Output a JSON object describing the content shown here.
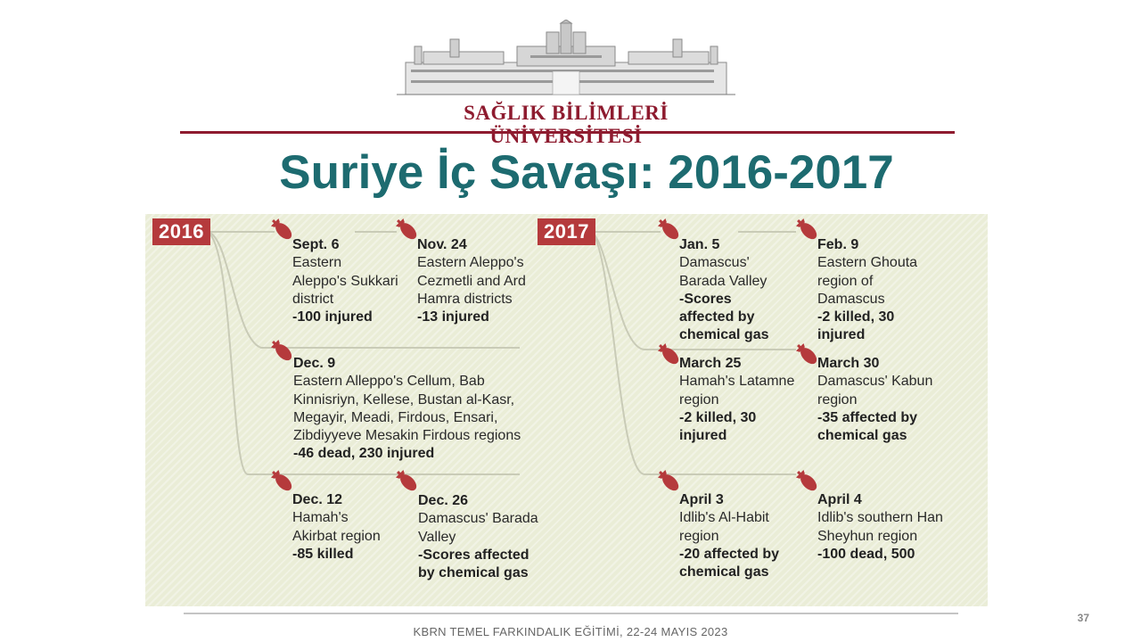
{
  "header": {
    "logo_text": "SAĞLIK BİLİMLERİ ÜNİVERSİTESİ",
    "brand_color": "#8e1b2f"
  },
  "slide": {
    "title": "Suriye İç Savaşı: 2016-2017",
    "title_color": "#1d6b70"
  },
  "timeline": {
    "accent_color": "#b53a3c",
    "years": {
      "y2016": "2016",
      "y2017": "2017"
    },
    "events": [
      {
        "date": "Sept. 6",
        "body": "Eastern\nAleppo's Sukkari\ndistrict",
        "impact": "-100 injured"
      },
      {
        "date": "Nov. 24",
        "body": "Eastern Aleppo's\nCezmetli and Ard\nHamra districts",
        "impact": "-13 injured"
      },
      {
        "date": "Dec. 9",
        "body": "Eastern Alleppo's Cellum, Bab\nKinnisriyn, Kellese, Bustan al-Kasr,\nMegayir, Meadi, Firdous, Ensari,\nZibdiyyeve Mesakin Firdous regions",
        "impact": "-46 dead, 230 injured"
      },
      {
        "date": "Dec. 12",
        "body": "Hamah's\nAkirbat region",
        "impact": "-85 killed"
      },
      {
        "date": "Dec. 26",
        "body": "Damascus' Barada\nValley",
        "impact": "-Scores affected\nby chemical gas"
      },
      {
        "date": "Jan. 5",
        "body": "Damascus'\nBarada Valley",
        "impact": "-Scores\naffected by\nchemical gas"
      },
      {
        "date": "Feb. 9",
        "body": "Eastern Ghouta\nregion of\nDamascus",
        "impact": "-2 killed, 30\ninjured"
      },
      {
        "date": "March 25",
        "body": "Hamah's Latamne\nregion",
        "impact": "-2 killed, 30\ninjured"
      },
      {
        "date": "March 30",
        "body": "Damascus' Kabun\nregion",
        "impact": "-35 affected by\nchemical gas"
      },
      {
        "date": "April 3",
        "body": "Idlib's Al-Habit\nregion",
        "impact": "-20 affected by\nchemical gas"
      },
      {
        "date": "April 4",
        "body": "Idlib's southern Han\nSheyhun region",
        "impact": "-100 dead, 500"
      }
    ]
  },
  "footer": {
    "text": "KBRN TEMEL FARKINDALIK EĞİTİMİ, 22-24 MAYIS 2023",
    "page_number": "37"
  }
}
